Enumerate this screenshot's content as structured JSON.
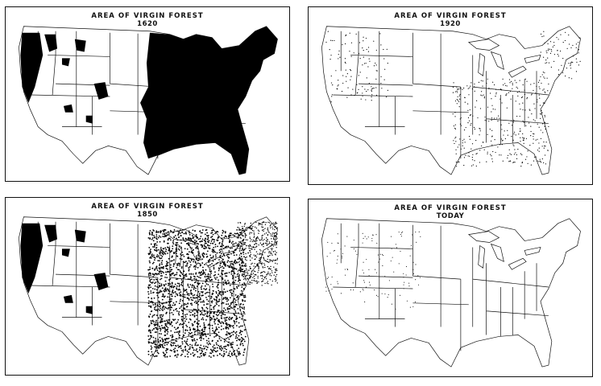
{
  "maps": [
    {
      "title": "AREA OF VIRGIN FOREST",
      "year": "1620"
    },
    {
      "title": "AREA OF VIRGIN FOREST",
      "year": "1920"
    },
    {
      "title": "AREA OF VIRGIN FOREST",
      "year": "1850"
    },
    {
      "title": "AREA OF VIRGIN FOREST",
      "year": "TODAY"
    }
  ],
  "colors": {
    "forest": "#000000",
    "land": "#ffffff",
    "border": "#111111"
  }
}
